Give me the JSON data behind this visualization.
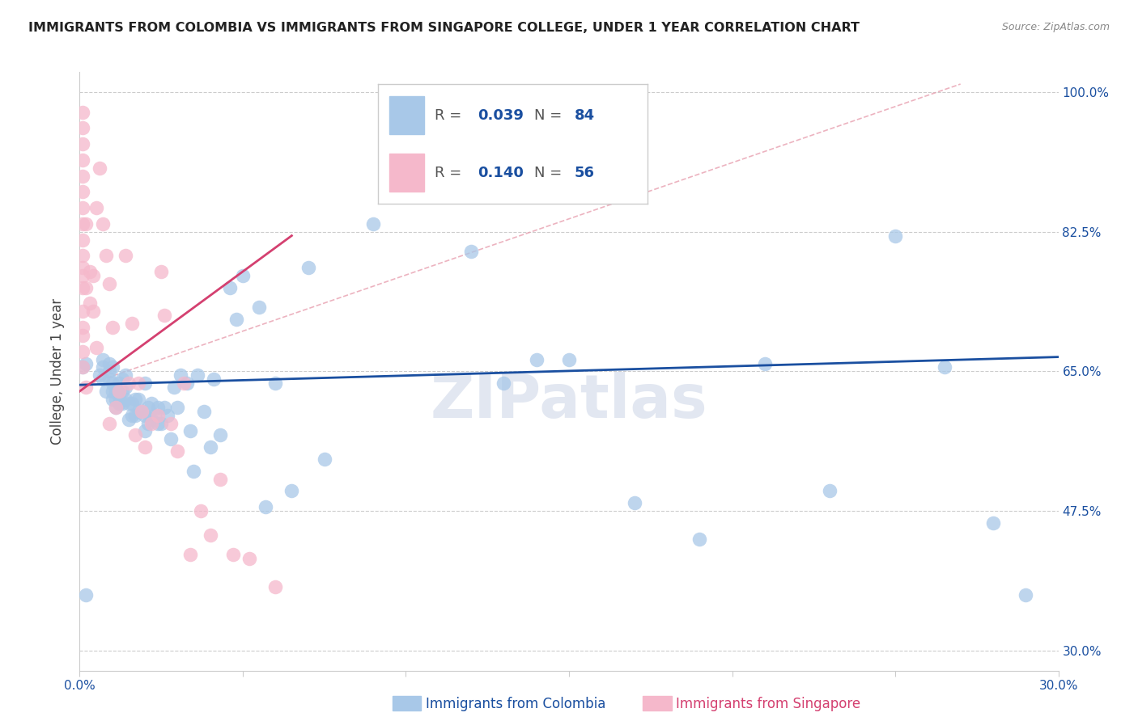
{
  "title": "IMMIGRANTS FROM COLOMBIA VS IMMIGRANTS FROM SINGAPORE COLLEGE, UNDER 1 YEAR CORRELATION CHART",
  "source": "Source: ZipAtlas.com",
  "ylabel": "College, Under 1 year",
  "xmin": 0.0,
  "xmax": 0.3,
  "ymin": 0.275,
  "ymax": 1.025,
  "yticks": [
    1.0,
    0.825,
    0.65,
    0.475,
    0.3
  ],
  "ytick_labels": [
    "100.0%",
    "82.5%",
    "65.0%",
    "47.5%",
    "30.0%"
  ],
  "colombia_R": 0.039,
  "colombia_N": 84,
  "singapore_R": 0.14,
  "singapore_N": 56,
  "colombia_color": "#a8c8e8",
  "singapore_color": "#f5b8cb",
  "colombia_line_color": "#1a4fa0",
  "singapore_line_color": "#d44070",
  "watermark": "ZIPatlas",
  "background_color": "#ffffff",
  "grid_color": "#cccccc",
  "colombia_x": [
    0.001,
    0.002,
    0.006,
    0.007,
    0.007,
    0.007,
    0.008,
    0.009,
    0.009,
    0.009,
    0.01,
    0.01,
    0.01,
    0.011,
    0.011,
    0.011,
    0.012,
    0.012,
    0.012,
    0.013,
    0.013,
    0.013,
    0.014,
    0.014,
    0.014,
    0.015,
    0.015,
    0.016,
    0.016,
    0.017,
    0.017,
    0.018,
    0.018,
    0.019,
    0.02,
    0.02,
    0.02,
    0.021,
    0.021,
    0.022,
    0.022,
    0.023,
    0.024,
    0.024,
    0.025,
    0.026,
    0.027,
    0.028,
    0.029,
    0.03,
    0.031,
    0.033,
    0.034,
    0.035,
    0.036,
    0.038,
    0.04,
    0.041,
    0.043,
    0.046,
    0.048,
    0.05,
    0.055,
    0.057,
    0.06,
    0.065,
    0.07,
    0.075,
    0.09,
    0.1,
    0.12,
    0.13,
    0.14,
    0.15,
    0.17,
    0.19,
    0.21,
    0.23,
    0.25,
    0.265,
    0.28,
    0.29,
    0.01,
    0.002
  ],
  "colombia_y": [
    0.655,
    0.66,
    0.645,
    0.64,
    0.655,
    0.665,
    0.625,
    0.64,
    0.65,
    0.66,
    0.615,
    0.625,
    0.635,
    0.605,
    0.615,
    0.625,
    0.61,
    0.62,
    0.635,
    0.61,
    0.625,
    0.64,
    0.615,
    0.63,
    0.645,
    0.59,
    0.61,
    0.595,
    0.61,
    0.595,
    0.615,
    0.6,
    0.615,
    0.6,
    0.575,
    0.595,
    0.635,
    0.585,
    0.605,
    0.59,
    0.61,
    0.595,
    0.585,
    0.605,
    0.585,
    0.605,
    0.595,
    0.565,
    0.63,
    0.605,
    0.645,
    0.635,
    0.575,
    0.525,
    0.645,
    0.6,
    0.555,
    0.64,
    0.57,
    0.755,
    0.715,
    0.77,
    0.73,
    0.48,
    0.635,
    0.5,
    0.78,
    0.54,
    0.835,
    0.96,
    0.8,
    0.635,
    0.665,
    0.665,
    0.485,
    0.44,
    0.66,
    0.5,
    0.82,
    0.655,
    0.46,
    0.37,
    0.655,
    0.37
  ],
  "singapore_x": [
    0.001,
    0.001,
    0.001,
    0.001,
    0.001,
    0.001,
    0.001,
    0.001,
    0.001,
    0.001,
    0.001,
    0.001,
    0.001,
    0.001,
    0.001,
    0.001,
    0.001,
    0.001,
    0.002,
    0.002,
    0.002,
    0.003,
    0.003,
    0.004,
    0.004,
    0.005,
    0.005,
    0.006,
    0.007,
    0.008,
    0.009,
    0.009,
    0.01,
    0.011,
    0.012,
    0.014,
    0.015,
    0.016,
    0.017,
    0.018,
    0.019,
    0.02,
    0.022,
    0.024,
    0.025,
    0.026,
    0.028,
    0.03,
    0.032,
    0.034,
    0.037,
    0.04,
    0.043,
    0.047,
    0.052,
    0.06
  ],
  "singapore_y": [
    0.975,
    0.955,
    0.935,
    0.915,
    0.895,
    0.875,
    0.855,
    0.835,
    0.815,
    0.795,
    0.78,
    0.77,
    0.755,
    0.725,
    0.705,
    0.695,
    0.675,
    0.655,
    0.63,
    0.755,
    0.835,
    0.775,
    0.735,
    0.77,
    0.725,
    0.855,
    0.68,
    0.905,
    0.835,
    0.795,
    0.76,
    0.585,
    0.705,
    0.605,
    0.625,
    0.795,
    0.635,
    0.71,
    0.57,
    0.635,
    0.6,
    0.555,
    0.585,
    0.595,
    0.775,
    0.72,
    0.585,
    0.55,
    0.635,
    0.42,
    0.475,
    0.445,
    0.515,
    0.42,
    0.415,
    0.38
  ],
  "diag_line_x": [
    0.0,
    0.27
  ],
  "diag_line_y": [
    0.63,
    1.01
  ]
}
